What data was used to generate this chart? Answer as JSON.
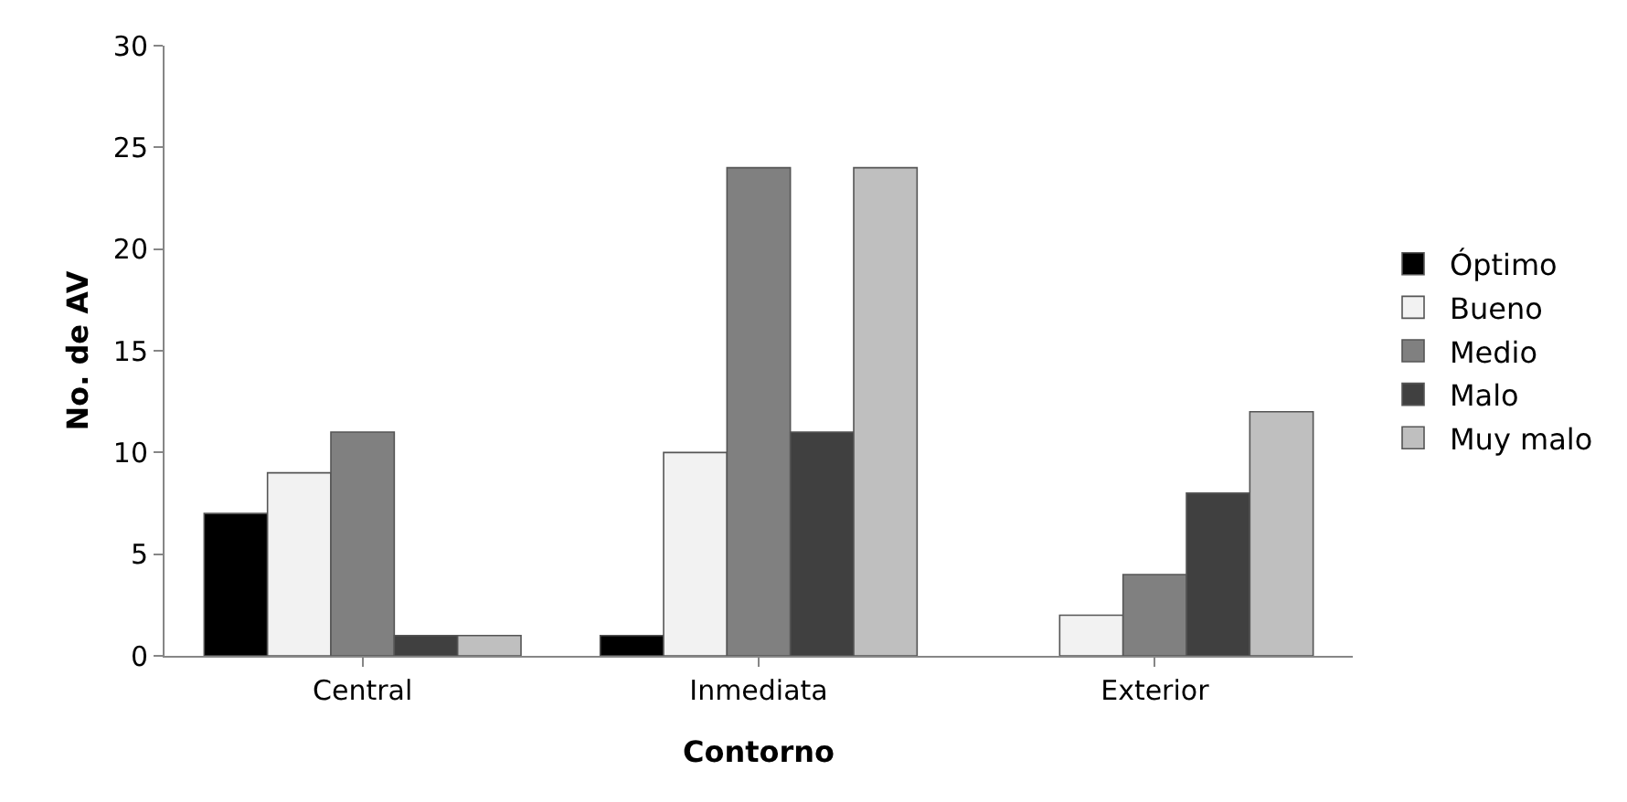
{
  "chart_data": {
    "type": "bar",
    "xlabel": "Contorno",
    "ylabel": "No. de AV",
    "categories": [
      "Central",
      "Inmediata",
      "Exterior"
    ],
    "series": [
      {
        "name": "Óptimo",
        "color": "#000000",
        "values": [
          7,
          1,
          0
        ]
      },
      {
        "name": "Bueno",
        "color": "#f2f2f2",
        "values": [
          9,
          10,
          2
        ]
      },
      {
        "name": "Medio",
        "color": "#808080",
        "values": [
          11,
          24,
          4
        ]
      },
      {
        "name": "Malo",
        "color": "#404040",
        "values": [
          1,
          11,
          8
        ]
      },
      {
        "name": "Muy malo",
        "color": "#bfbfbf",
        "values": [
          1,
          24,
          12
        ]
      }
    ],
    "ylim": [
      0,
      30
    ],
    "yticks": [
      0,
      5,
      10,
      15,
      20,
      25,
      30
    ],
    "grid": false,
    "legend": "right"
  }
}
